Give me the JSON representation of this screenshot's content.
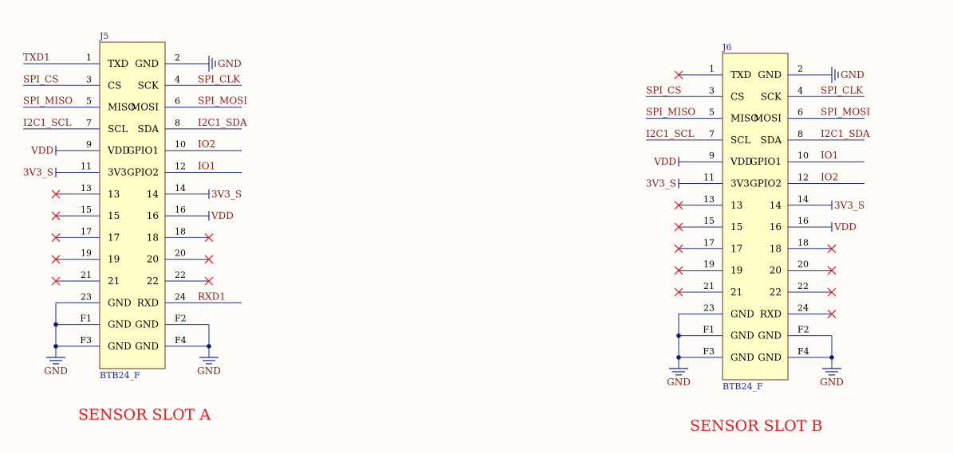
{
  "colors": {
    "background": "#fdfcf8",
    "body_fill": "#ffffc8",
    "body_stroke": "#7a2a2a",
    "pin_line": "#1c2a86",
    "net_text": "#8b1a1a",
    "designator": "#1c2a86",
    "pin_text": "#000000",
    "no_connect": "#e8181e",
    "junction": "#101a7a",
    "title": "#e8181e"
  },
  "slots": [
    {
      "id": "a",
      "title": "SENSOR  SLOT A",
      "designator": "J5",
      "part": "BTB24_F",
      "pins": [
        {
          "left_no": "1",
          "left_name": "TXD",
          "right_no": "2",
          "right_name": "GND",
          "left_net": "TXD1",
          "right_net": "",
          "left_nc": false,
          "right_nc": false
        },
        {
          "left_no": "3",
          "left_name": "CS",
          "right_no": "4",
          "right_name": "SCK",
          "left_net": "SPI_CS",
          "right_net": "SPI_CLK",
          "left_nc": false,
          "right_nc": false
        },
        {
          "left_no": "5",
          "left_name": "MISO",
          "right_no": "6",
          "right_name": "MOSI",
          "left_net": "SPI_MISO",
          "right_net": "SPI_MOSI",
          "left_nc": false,
          "right_nc": false
        },
        {
          "left_no": "7",
          "left_name": "SCL",
          "right_no": "8",
          "right_name": "SDA",
          "left_net": "I2C1_SCL",
          "right_net": "I2C1_SDA",
          "left_nc": false,
          "right_nc": false
        },
        {
          "left_no": "9",
          "left_name": "VDD",
          "right_no": "10",
          "right_name": "GPIO1",
          "left_net": "",
          "right_net": "IO2",
          "left_nc": false,
          "right_nc": false
        },
        {
          "left_no": "11",
          "left_name": "3V3",
          "right_no": "12",
          "right_name": "GPIO2",
          "left_net": "",
          "right_net": "IO1",
          "left_nc": false,
          "right_nc": false
        },
        {
          "left_no": "13",
          "left_name": "13",
          "right_no": "14",
          "right_name": "14",
          "left_net": "",
          "right_net": "",
          "left_nc": true,
          "right_nc": false
        },
        {
          "left_no": "15",
          "left_name": "15",
          "right_no": "16",
          "right_name": "16",
          "left_net": "",
          "right_net": "",
          "left_nc": true,
          "right_nc": false
        },
        {
          "left_no": "17",
          "left_name": "17",
          "right_no": "18",
          "right_name": "18",
          "left_net": "",
          "right_net": "",
          "left_nc": true,
          "right_nc": true
        },
        {
          "left_no": "19",
          "left_name": "19",
          "right_no": "20",
          "right_name": "20",
          "left_net": "",
          "right_net": "",
          "left_nc": true,
          "right_nc": true
        },
        {
          "left_no": "21",
          "left_name": "21",
          "right_no": "22",
          "right_name": "22",
          "left_net": "",
          "right_net": "",
          "left_nc": true,
          "right_nc": true
        },
        {
          "left_no": "23",
          "left_name": "GND",
          "right_no": "24",
          "right_name": "RXD",
          "left_net": "",
          "right_net": "RXD1",
          "left_nc": false,
          "right_nc": false
        },
        {
          "left_no": "F1",
          "left_name": "GND",
          "right_no": "F2",
          "right_name": "GND",
          "left_net": "",
          "right_net": "",
          "left_nc": false,
          "right_nc": false
        },
        {
          "left_no": "F3",
          "left_name": "GND",
          "right_no": "F4",
          "right_name": "GND",
          "left_net": "",
          "right_net": "",
          "left_nc": false,
          "right_nc": false
        }
      ],
      "ports": [
        {
          "row": 0,
          "side": "right",
          "kind": "gnd-port",
          "label": "GND"
        },
        {
          "row": 4,
          "side": "left",
          "kind": "power-port",
          "label": "VDD"
        },
        {
          "row": 5,
          "side": "left",
          "kind": "power-port",
          "label": "3V3_S"
        },
        {
          "row": 6,
          "side": "right",
          "kind": "power-port",
          "label": "3V3_S"
        },
        {
          "row": 7,
          "side": "right",
          "kind": "power-port",
          "label": "VDD"
        }
      ],
      "ground_symbols": [
        {
          "side": "left",
          "label": "GND"
        },
        {
          "side": "right",
          "label": "GND"
        }
      ]
    },
    {
      "id": "b",
      "title": "SENSOR  SLOT B",
      "designator": "J6",
      "part": "BTB24_F",
      "pins": [
        {
          "left_no": "1",
          "left_name": "TXD",
          "right_no": "2",
          "right_name": "GND",
          "left_net": "",
          "right_net": "",
          "left_nc": true,
          "right_nc": false
        },
        {
          "left_no": "3",
          "left_name": "CS",
          "right_no": "4",
          "right_name": "SCK",
          "left_net": "SPI_CS",
          "right_net": "SPI_CLK",
          "left_nc": false,
          "right_nc": false
        },
        {
          "left_no": "5",
          "left_name": "MISO",
          "right_no": "6",
          "right_name": "MOSI",
          "left_net": "SPI_MISO",
          "right_net": "SPI_MOSI",
          "left_nc": false,
          "right_nc": false
        },
        {
          "left_no": "7",
          "left_name": "SCL",
          "right_no": "8",
          "right_name": "SDA",
          "left_net": "I2C1_SCL",
          "right_net": "I2C1_SDA",
          "left_nc": false,
          "right_nc": false
        },
        {
          "left_no": "9",
          "left_name": "VDD",
          "right_no": "10",
          "right_name": "GPIO1",
          "left_net": "",
          "right_net": "IO1",
          "left_nc": false,
          "right_nc": false
        },
        {
          "left_no": "11",
          "left_name": "3V3",
          "right_no": "12",
          "right_name": "GPIO2",
          "left_net": "",
          "right_net": "IO2",
          "left_nc": false,
          "right_nc": false
        },
        {
          "left_no": "13",
          "left_name": "13",
          "right_no": "14",
          "right_name": "14",
          "left_net": "",
          "right_net": "",
          "left_nc": true,
          "right_nc": false
        },
        {
          "left_no": "15",
          "left_name": "15",
          "right_no": "16",
          "right_name": "16",
          "left_net": "",
          "right_net": "",
          "left_nc": true,
          "right_nc": false
        },
        {
          "left_no": "17",
          "left_name": "17",
          "right_no": "18",
          "right_name": "18",
          "left_net": "",
          "right_net": "",
          "left_nc": true,
          "right_nc": true
        },
        {
          "left_no": "19",
          "left_name": "19",
          "right_no": "20",
          "right_name": "20",
          "left_net": "",
          "right_net": "",
          "left_nc": true,
          "right_nc": true
        },
        {
          "left_no": "21",
          "left_name": "21",
          "right_no": "22",
          "right_name": "22",
          "left_net": "",
          "right_net": "",
          "left_nc": true,
          "right_nc": true
        },
        {
          "left_no": "23",
          "left_name": "GND",
          "right_no": "24",
          "right_name": "RXD",
          "left_net": "",
          "right_net": "",
          "left_nc": false,
          "right_nc": true
        },
        {
          "left_no": "F1",
          "left_name": "GND",
          "right_no": "F2",
          "right_name": "GND",
          "left_net": "",
          "right_net": "",
          "left_nc": false,
          "right_nc": false
        },
        {
          "left_no": "F3",
          "left_name": "GND",
          "right_no": "F4",
          "right_name": "GND",
          "left_net": "",
          "right_net": "",
          "left_nc": false,
          "right_nc": false
        }
      ],
      "ports": [
        {
          "row": 0,
          "side": "right",
          "kind": "gnd-port",
          "label": "GND"
        },
        {
          "row": 4,
          "side": "left",
          "kind": "power-port",
          "label": "VDD"
        },
        {
          "row": 5,
          "side": "left",
          "kind": "power-port",
          "label": "3V3_S"
        },
        {
          "row": 6,
          "side": "right",
          "kind": "power-port",
          "label": "3V3_S"
        },
        {
          "row": 7,
          "side": "right",
          "kind": "power-port",
          "label": "VDD"
        }
      ],
      "ground_symbols": [
        {
          "side": "left",
          "label": "GND"
        },
        {
          "side": "right",
          "label": "GND"
        }
      ]
    }
  ]
}
